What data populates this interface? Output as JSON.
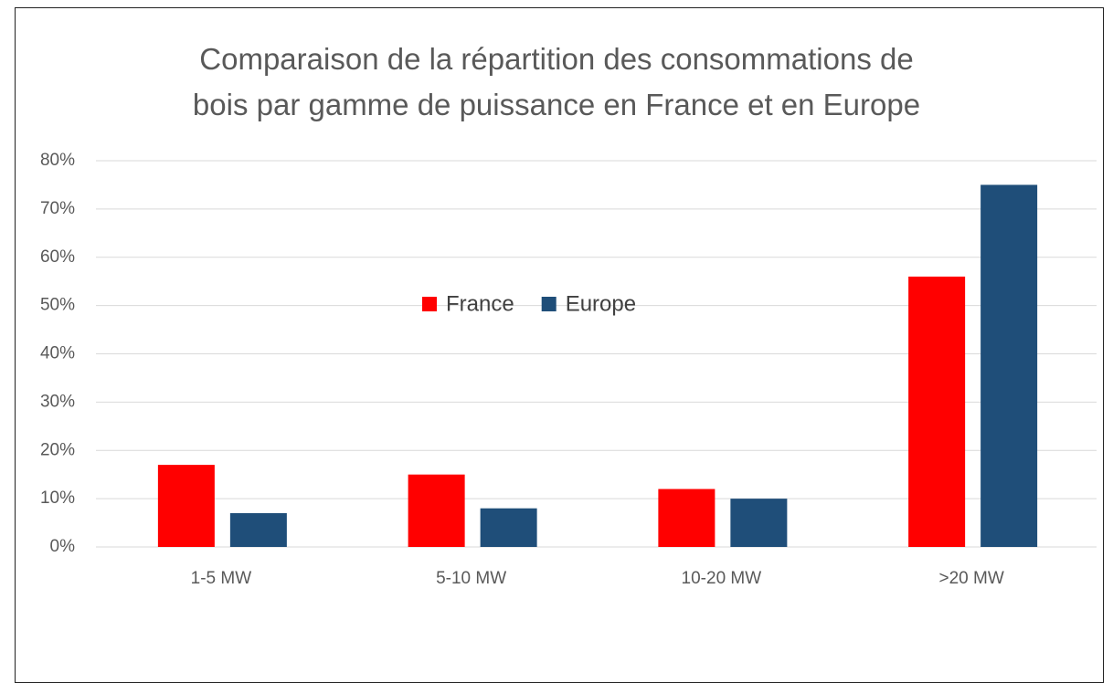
{
  "chart_data": {
    "type": "bar",
    "title": "Comparaison de la répartition des consommations de bois par gamme de puissance en France et en Europe",
    "categories": [
      "1-5 MW",
      "5-10 MW",
      "10-20 MW",
      ">20 MW"
    ],
    "series": [
      {
        "name": "France",
        "color": "#ff0000",
        "values": [
          17,
          15,
          12,
          56
        ]
      },
      {
        "name": "Europe",
        "color": "#1f4e79",
        "values": [
          7,
          8,
          10,
          75
        ]
      }
    ],
    "ylim": [
      0,
      80
    ],
    "yticks": [
      {
        "value": 0,
        "label": "0%"
      },
      {
        "value": 10,
        "label": "10%"
      },
      {
        "value": 20,
        "label": "20%"
      },
      {
        "value": 30,
        "label": "30%"
      },
      {
        "value": 40,
        "label": "40%"
      },
      {
        "value": 50,
        "label": "50%"
      },
      {
        "value": 60,
        "label": "60%"
      },
      {
        "value": 70,
        "label": "70%"
      },
      {
        "value": 80,
        "label": "80%"
      }
    ],
    "grid": true
  }
}
